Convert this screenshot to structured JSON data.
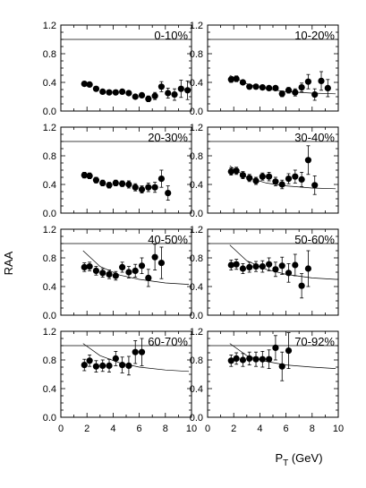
{
  "chart_data": {
    "type": "scatter",
    "ylabel": "RAA",
    "xlabel_main": "P",
    "xlabel_sub": "T",
    "xlabel_unit": " (GeV)",
    "xlim": [
      0,
      10
    ],
    "ylim": [
      0,
      1.2
    ],
    "xticks": [
      "0",
      "2",
      "4",
      "6",
      "8",
      "10"
    ],
    "yticks": [
      "0.0",
      "0.4",
      "0.8",
      "1.2"
    ],
    "x": [
      1.8,
      2.2,
      2.7,
      3.2,
      3.7,
      4.2,
      4.7,
      5.2,
      5.7,
      6.2,
      6.7,
      7.2,
      7.7,
      8.2,
      8.7,
      9.2
    ],
    "reference_line": 1.0,
    "panels": [
      {
        "label": "0-10%",
        "values": [
          0.38,
          0.37,
          0.31,
          0.27,
          0.26,
          0.26,
          0.27,
          0.25,
          0.2,
          0.22,
          0.17,
          0.21,
          0.34,
          0.25,
          0.23,
          0.31,
          0.29
        ],
        "errors": [
          0.03,
          0.03,
          0.03,
          0.03,
          0.03,
          0.03,
          0.03,
          0.03,
          0.03,
          0.03,
          0.04,
          0.05,
          0.07,
          0.07,
          0.08,
          0.12,
          0.13
        ],
        "x_override": [
          1.8,
          2.2,
          2.7,
          3.2,
          3.7,
          4.2,
          4.7,
          5.2,
          5.7,
          6.2,
          6.7,
          7.2,
          7.7,
          8.2,
          8.7,
          9.2,
          9.7
        ],
        "curve": []
      },
      {
        "label": "10-20%",
        "values": [
          0.44,
          0.45,
          0.4,
          0.34,
          0.34,
          0.33,
          0.32,
          0.32,
          0.24,
          0.29,
          0.26,
          0.33,
          0.41,
          0.23,
          0.42,
          0.32
        ],
        "errors": [
          0.04,
          0.04,
          0.03,
          0.03,
          0.03,
          0.03,
          0.03,
          0.03,
          0.04,
          0.04,
          0.05,
          0.06,
          0.1,
          0.08,
          0.13,
          0.12
        ],
        "curve": [
          [
            1.7,
            0.5
          ],
          [
            3.0,
            0.38
          ],
          [
            4.5,
            0.31
          ],
          [
            6.0,
            0.27
          ],
          [
            8.0,
            0.25
          ],
          [
            9.8,
            0.24
          ]
        ]
      },
      {
        "label": "20-30%",
        "values": [
          0.53,
          0.52,
          0.46,
          0.42,
          0.39,
          0.42,
          0.41,
          0.4,
          0.36,
          0.33,
          0.36,
          0.36,
          0.48,
          0.28
        ],
        "errors": [
          0.04,
          0.04,
          0.04,
          0.04,
          0.04,
          0.04,
          0.04,
          0.05,
          0.05,
          0.05,
          0.06,
          0.07,
          0.12,
          0.1
        ],
        "curve": []
      },
      {
        "label": "30-40%",
        "values": [
          0.58,
          0.59,
          0.53,
          0.49,
          0.45,
          0.51,
          0.51,
          0.44,
          0.4,
          0.48,
          0.51,
          0.47,
          0.74,
          0.39
        ],
        "errors": [
          0.05,
          0.05,
          0.05,
          0.05,
          0.05,
          0.05,
          0.06,
          0.06,
          0.06,
          0.07,
          0.09,
          0.1,
          0.2,
          0.13
        ],
        "curve": [
          [
            1.7,
            0.66
          ],
          [
            3.0,
            0.5
          ],
          [
            4.5,
            0.42
          ],
          [
            6.0,
            0.38
          ],
          [
            8.0,
            0.35
          ],
          [
            9.8,
            0.34
          ]
        ]
      },
      {
        "label": "40-50%",
        "values": [
          0.67,
          0.68,
          0.62,
          0.59,
          0.57,
          0.55,
          0.67,
          0.6,
          0.62,
          0.69,
          0.52,
          0.81,
          0.73
        ],
        "errors": [
          0.06,
          0.06,
          0.06,
          0.06,
          0.06,
          0.06,
          0.07,
          0.08,
          0.09,
          0.11,
          0.12,
          0.18,
          0.22
        ],
        "curve": [
          [
            1.7,
            0.9
          ],
          [
            3.0,
            0.68
          ],
          [
            4.5,
            0.56
          ],
          [
            6.0,
            0.5
          ],
          [
            8.0,
            0.45
          ],
          [
            9.8,
            0.43
          ]
        ]
      },
      {
        "label": "50-60%",
        "values": [
          0.7,
          0.71,
          0.65,
          0.67,
          0.68,
          0.68,
          0.71,
          0.64,
          0.69,
          0.59,
          0.7,
          0.41,
          0.65
        ],
        "errors": [
          0.07,
          0.07,
          0.07,
          0.07,
          0.07,
          0.08,
          0.09,
          0.1,
          0.12,
          0.13,
          0.15,
          0.17,
          0.25
        ],
        "curve": [
          [
            1.7,
            0.98
          ],
          [
            3.0,
            0.76
          ],
          [
            4.5,
            0.64
          ],
          [
            6.0,
            0.57
          ],
          [
            8.0,
            0.52
          ],
          [
            9.8,
            0.5
          ]
        ]
      },
      {
        "label": "60-70%",
        "values": [
          0.73,
          0.79,
          0.71,
          0.72,
          0.72,
          0.82,
          0.73,
          0.72,
          0.91,
          0.91
        ],
        "errors": [
          0.08,
          0.08,
          0.08,
          0.08,
          0.09,
          0.1,
          0.11,
          0.13,
          0.16,
          0.19
        ],
        "curve": [
          [
            1.7,
            1.03
          ],
          [
            3.0,
            0.86
          ],
          [
            4.5,
            0.76
          ],
          [
            6.0,
            0.7
          ],
          [
            8.0,
            0.66
          ],
          [
            9.8,
            0.64
          ]
        ]
      },
      {
        "label": "70-92%",
        "values": [
          0.79,
          0.82,
          0.8,
          0.82,
          0.81,
          0.81,
          0.81,
          0.97,
          0.71,
          0.93
        ],
        "errors": [
          0.08,
          0.08,
          0.09,
          0.09,
          0.1,
          0.11,
          0.13,
          0.17,
          0.2,
          0.25
        ],
        "curve": [
          [
            1.7,
            1.03
          ],
          [
            3.0,
            0.86
          ],
          [
            4.5,
            0.78
          ],
          [
            6.0,
            0.73
          ],
          [
            8.0,
            0.7
          ],
          [
            9.8,
            0.68
          ]
        ]
      }
    ]
  }
}
